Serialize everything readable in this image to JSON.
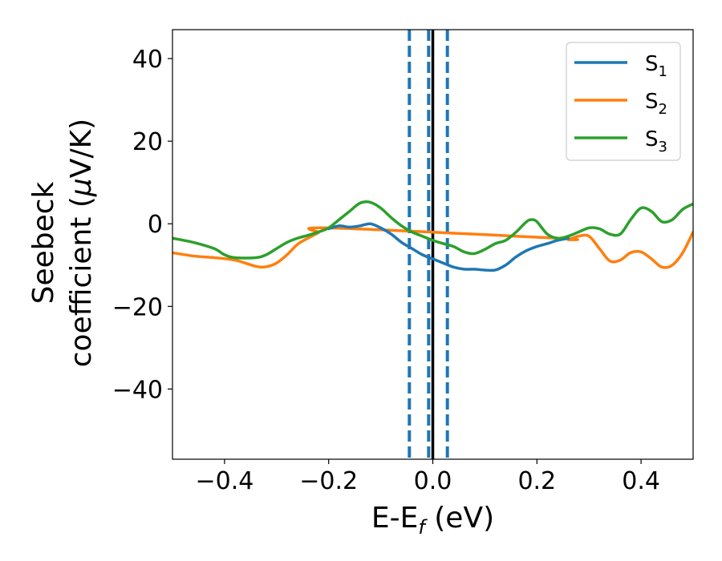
{
  "chart_data": {
    "type": "line",
    "xlabel": "E-E",
    "xlabel_sub": "f",
    "xlabel_unit": " (eV)",
    "ylabel_line1": "Seebeck",
    "ylabel_line2_prefix": "coefficient  (",
    "ylabel_mu": "μ",
    "ylabel_line2_suffix": "V/K)",
    "xlim": [
      -0.5,
      0.5
    ],
    "ylim": [
      -57,
      47
    ],
    "x_ticks": [
      -0.4,
      -0.2,
      0.0,
      0.2,
      0.4
    ],
    "x_tick_labels": [
      "−0.4",
      "−0.2",
      "0.0",
      "0.2",
      "0.4"
    ],
    "y_ticks": [
      40,
      20,
      0,
      -20,
      -40
    ],
    "y_tick_labels": [
      "40",
      "20",
      "0",
      "−20",
      "−40"
    ],
    "grid": false,
    "legend_position": "top-right",
    "vlines": [
      {
        "x": -0.045,
        "style": "dashed",
        "color": "#1f77b4"
      },
      {
        "x": -0.008,
        "style": "dashed",
        "color": "#1f77b4"
      },
      {
        "x": 0.0,
        "style": "solid",
        "color": "#000000"
      },
      {
        "x": 0.028,
        "style": "dashed",
        "color": "#1f77b4"
      }
    ],
    "series": [
      {
        "name": "S",
        "name_sub": "1",
        "color": "#1f77b4",
        "points": [
          [
            -0.2,
            -1.2
          ],
          [
            -0.18,
            -0.5
          ],
          [
            -0.16,
            -0.8
          ],
          [
            -0.14,
            -0.5
          ],
          [
            -0.12,
            0.0
          ],
          [
            -0.1,
            -1.0
          ],
          [
            -0.08,
            -2.5
          ],
          [
            -0.06,
            -4.5
          ],
          [
            -0.04,
            -6.0
          ],
          [
            -0.02,
            -7.5
          ],
          [
            0.0,
            -8.5
          ],
          [
            0.02,
            -9.5
          ],
          [
            0.04,
            -10.5
          ],
          [
            0.06,
            -11.0
          ],
          [
            0.08,
            -11.0
          ],
          [
            0.1,
            -11.2
          ],
          [
            0.12,
            -11.2
          ],
          [
            0.14,
            -10.0
          ],
          [
            0.16,
            -8.0
          ],
          [
            0.18,
            -6.5
          ],
          [
            0.2,
            -5.5
          ],
          [
            0.22,
            -4.8
          ],
          [
            0.24,
            -4.0
          ],
          [
            0.26,
            -3.5
          ]
        ]
      },
      {
        "name": "S",
        "name_sub": "2",
        "color": "#ff7f0e",
        "points": [
          [
            -0.5,
            -7.0
          ],
          [
            -0.46,
            -7.8
          ],
          [
            -0.42,
            -8.2
          ],
          [
            -0.38,
            -8.8
          ],
          [
            -0.34,
            -10.3
          ],
          [
            -0.32,
            -10.4
          ],
          [
            -0.3,
            -9.5
          ],
          [
            -0.28,
            -7.5
          ],
          [
            -0.26,
            -5.0
          ],
          [
            -0.24,
            -3.5
          ],
          [
            -0.22,
            -2.2
          ],
          [
            -0.2,
            -1.0
          ],
          [
            0.24,
            -3.5
          ],
          [
            0.26,
            -3.8
          ],
          [
            0.28,
            -3.0
          ],
          [
            0.3,
            -3.0
          ],
          [
            0.32,
            -6.0
          ],
          [
            0.34,
            -9.0
          ],
          [
            0.36,
            -8.8
          ],
          [
            0.38,
            -7.0
          ],
          [
            0.4,
            -6.8
          ],
          [
            0.42,
            -8.5
          ],
          [
            0.44,
            -10.5
          ],
          [
            0.46,
            -10.0
          ],
          [
            0.48,
            -7.0
          ],
          [
            0.5,
            -2.0
          ]
        ]
      },
      {
        "name": "S",
        "name_sub": "3",
        "color": "#2ca02c",
        "points": [
          [
            -0.5,
            -3.5
          ],
          [
            -0.46,
            -4.5
          ],
          [
            -0.42,
            -6.0
          ],
          [
            -0.4,
            -7.5
          ],
          [
            -0.38,
            -8.2
          ],
          [
            -0.34,
            -8.2
          ],
          [
            -0.32,
            -7.5
          ],
          [
            -0.3,
            -6.0
          ],
          [
            -0.28,
            -4.5
          ],
          [
            -0.26,
            -3.5
          ],
          [
            -0.24,
            -2.8
          ],
          [
            -0.22,
            -2.0
          ],
          [
            -0.2,
            -1.0
          ],
          [
            -0.18,
            1.0
          ],
          [
            -0.16,
            3.0
          ],
          [
            -0.14,
            5.0
          ],
          [
            -0.12,
            5.2
          ],
          [
            -0.1,
            3.8
          ],
          [
            -0.08,
            1.5
          ],
          [
            -0.06,
            -0.5
          ],
          [
            -0.04,
            -2.0
          ],
          [
            -0.02,
            -3.0
          ],
          [
            0.0,
            -4.0
          ],
          [
            0.02,
            -4.8
          ],
          [
            0.04,
            -5.5
          ],
          [
            0.06,
            -6.8
          ],
          [
            0.08,
            -7.2
          ],
          [
            0.1,
            -6.2
          ],
          [
            0.12,
            -4.8
          ],
          [
            0.14,
            -4.0
          ],
          [
            0.16,
            -2.0
          ],
          [
            0.18,
            0.5
          ],
          [
            0.19,
            1.0
          ],
          [
            0.2,
            0.5
          ],
          [
            0.22,
            -2.5
          ],
          [
            0.24,
            -3.5
          ],
          [
            0.26,
            -3.0
          ],
          [
            0.28,
            -2.0
          ],
          [
            0.3,
            -1.0
          ],
          [
            0.32,
            -1.2
          ],
          [
            0.34,
            -2.5
          ],
          [
            0.36,
            -2.5
          ],
          [
            0.38,
            1.0
          ],
          [
            0.4,
            3.8
          ],
          [
            0.42,
            3.0
          ],
          [
            0.44,
            0.5
          ],
          [
            0.46,
            1.0
          ],
          [
            0.48,
            3.5
          ],
          [
            0.5,
            4.8
          ]
        ]
      }
    ]
  }
}
